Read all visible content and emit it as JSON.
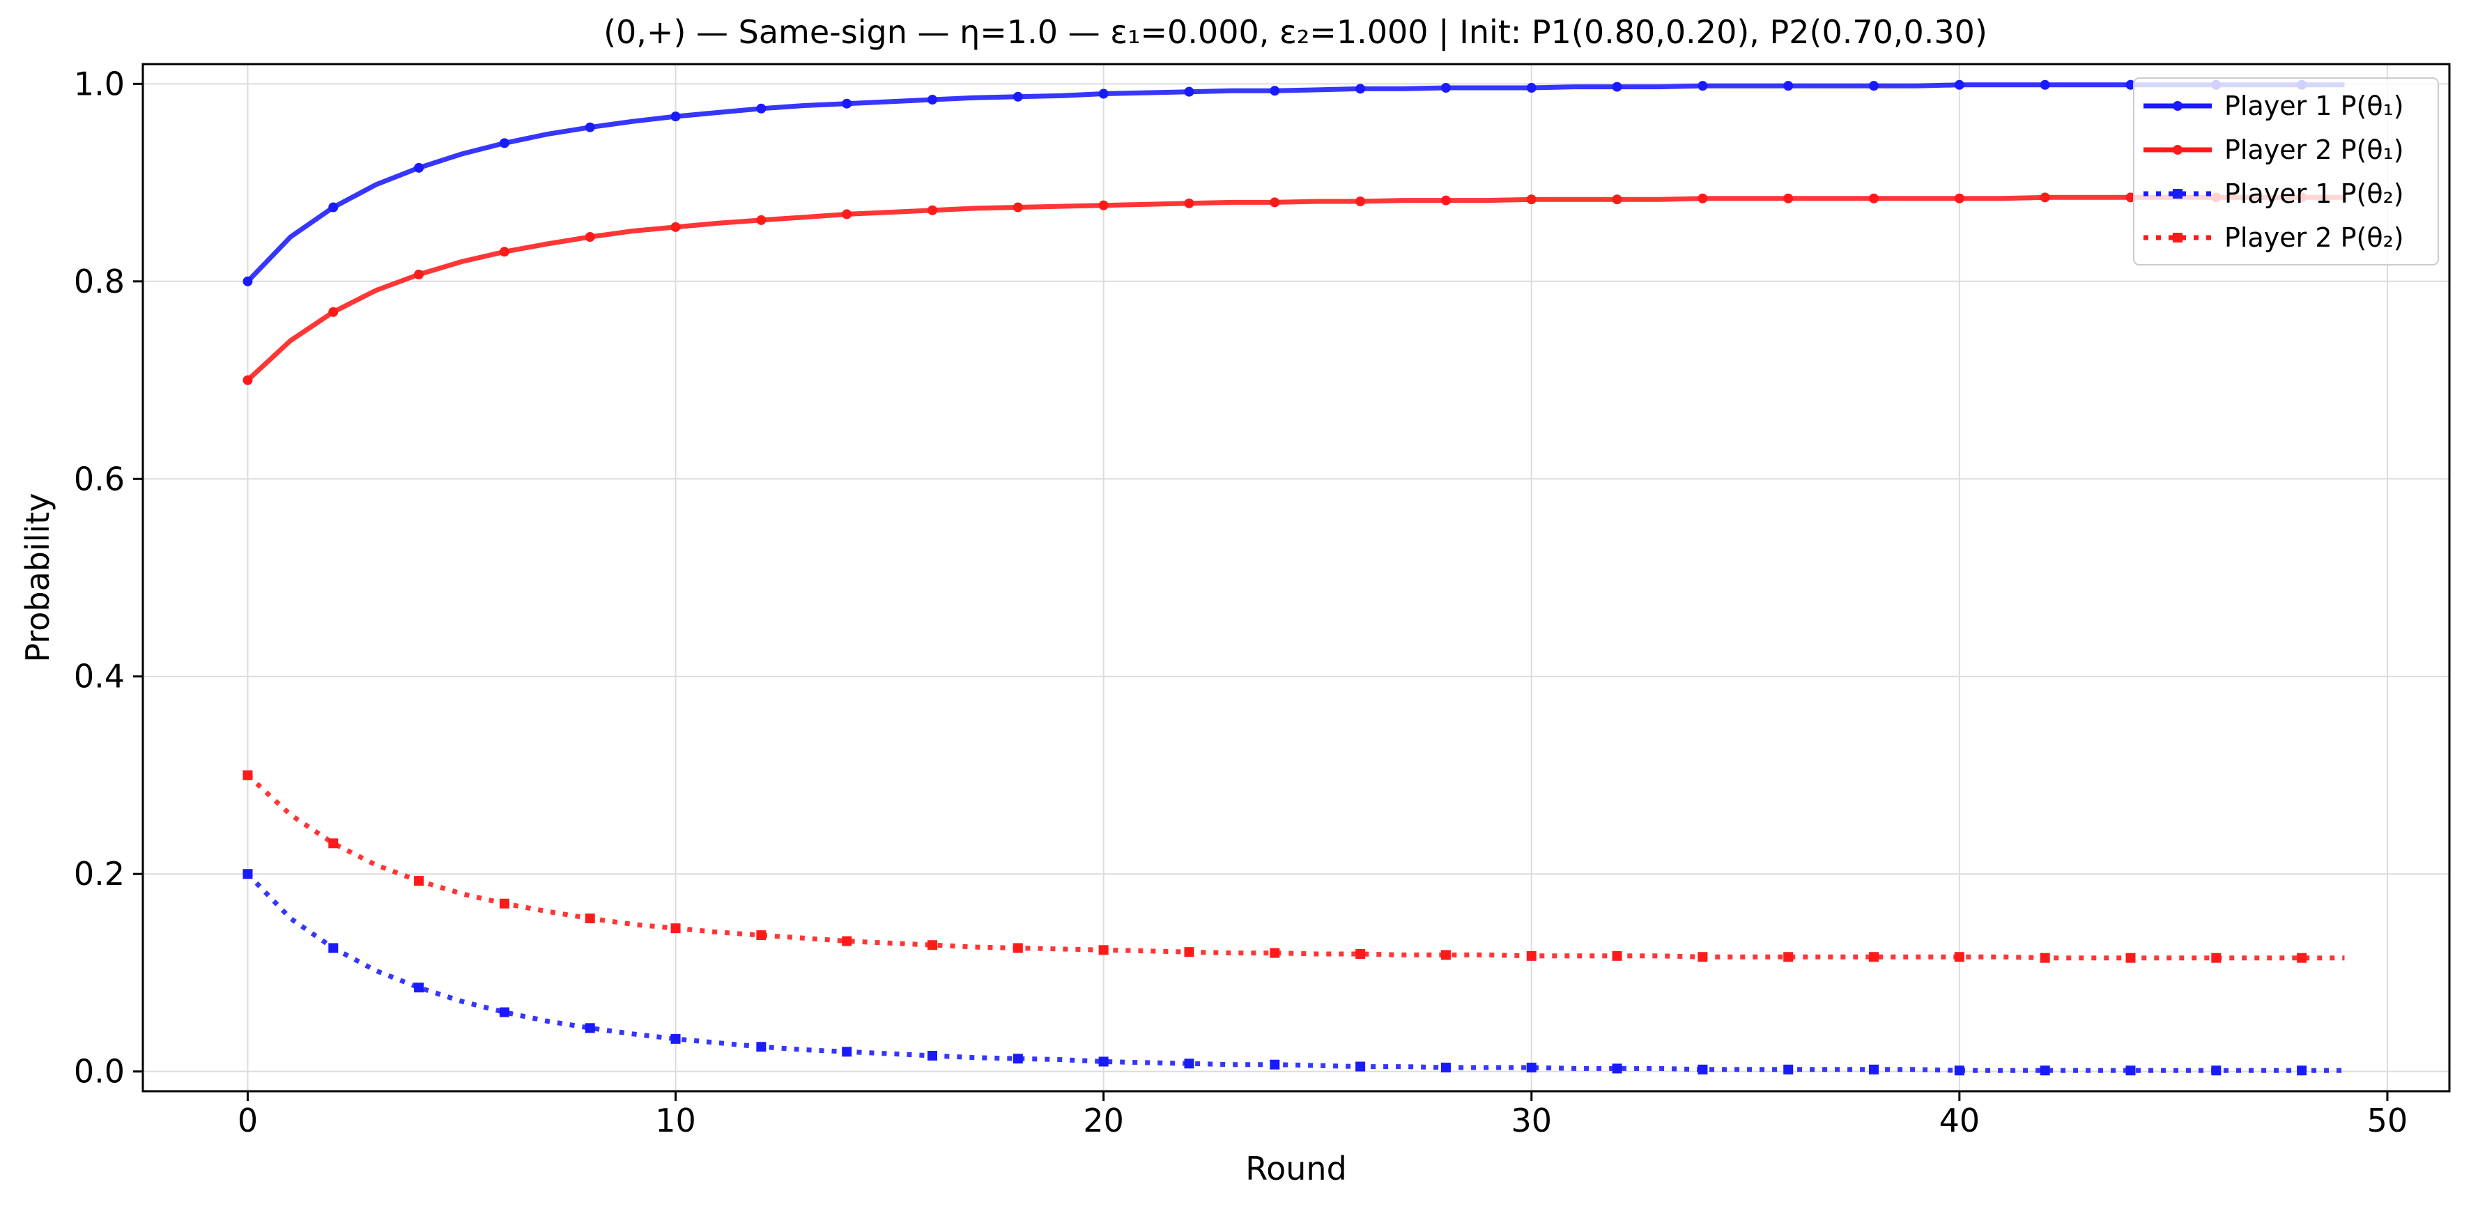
{
  "chart_data": {
    "type": "line",
    "title": "(0,+) — Same-sign — η=1.0 — ε₁=0.000, ε₂=1.000 | Init: P1(0.80,0.20), P2(0.70,0.30)",
    "xlabel": "Round",
    "ylabel": "Probability",
    "xlim": [
      -2.45,
      51.45
    ],
    "ylim": [
      -0.02,
      1.02
    ],
    "xticks": [
      0,
      10,
      20,
      30,
      40,
      50
    ],
    "xtick_labels": [
      "0",
      "10",
      "20",
      "30",
      "40",
      "50"
    ],
    "yticks": [
      0.0,
      0.2,
      0.4,
      0.6,
      0.8,
      1.0
    ],
    "ytick_labels": [
      "0.0",
      "0.2",
      "0.4",
      "0.6",
      "0.8",
      "1.0"
    ],
    "grid": true,
    "legend_position": "top-right",
    "x": [
      0,
      1,
      2,
      3,
      4,
      5,
      6,
      7,
      8,
      9,
      10,
      11,
      12,
      13,
      14,
      15,
      16,
      17,
      18,
      19,
      20,
      21,
      22,
      23,
      24,
      25,
      26,
      27,
      28,
      29,
      30,
      31,
      32,
      33,
      34,
      35,
      36,
      37,
      38,
      39,
      40,
      41,
      42,
      43,
      44,
      45,
      46,
      47,
      48,
      49
    ],
    "marker_every": 2,
    "series": [
      {
        "name": "Player 1 P(θ₁)",
        "color": "#1a1aff",
        "style": "solid",
        "marker": "circle",
        "values": [
          0.8,
          0.845,
          0.875,
          0.898,
          0.915,
          0.929,
          0.94,
          0.949,
          0.956,
          0.962,
          0.967,
          0.971,
          0.975,
          0.978,
          0.98,
          0.982,
          0.984,
          0.986,
          0.987,
          0.988,
          0.99,
          0.991,
          0.992,
          0.993,
          0.993,
          0.994,
          0.995,
          0.995,
          0.996,
          0.996,
          0.996,
          0.997,
          0.997,
          0.997,
          0.998,
          0.998,
          0.998,
          0.998,
          0.998,
          0.998,
          0.999,
          0.999,
          0.999,
          0.999,
          0.999,
          0.999,
          0.999,
          0.999,
          0.999,
          0.999
        ]
      },
      {
        "name": "Player 2 P(θ₁)",
        "color": "#ff1a1a",
        "style": "solid",
        "marker": "circle",
        "values": [
          0.7,
          0.74,
          0.769,
          0.791,
          0.807,
          0.82,
          0.83,
          0.838,
          0.845,
          0.851,
          0.855,
          0.859,
          0.862,
          0.865,
          0.868,
          0.87,
          0.872,
          0.874,
          0.875,
          0.876,
          0.877,
          0.878,
          0.879,
          0.88,
          0.88,
          0.881,
          0.881,
          0.882,
          0.882,
          0.882,
          0.883,
          0.883,
          0.883,
          0.883,
          0.884,
          0.884,
          0.884,
          0.884,
          0.884,
          0.884,
          0.884,
          0.884,
          0.885,
          0.885,
          0.885,
          0.885,
          0.885,
          0.885,
          0.885,
          0.885
        ]
      },
      {
        "name": "Player 1 P(θ₂)",
        "color": "#1a1aff",
        "style": "dotted",
        "marker": "square",
        "values": [
          0.2,
          0.155,
          0.125,
          0.102,
          0.085,
          0.071,
          0.06,
          0.051,
          0.044,
          0.038,
          0.033,
          0.029,
          0.025,
          0.022,
          0.02,
          0.018,
          0.016,
          0.014,
          0.013,
          0.012,
          0.01,
          0.009,
          0.008,
          0.007,
          0.007,
          0.006,
          0.005,
          0.005,
          0.004,
          0.004,
          0.004,
          0.003,
          0.003,
          0.003,
          0.002,
          0.002,
          0.002,
          0.002,
          0.002,
          0.002,
          0.001,
          0.001,
          0.001,
          0.001,
          0.001,
          0.001,
          0.001,
          0.001,
          0.001,
          0.001
        ]
      },
      {
        "name": "Player 2 P(θ₂)",
        "color": "#ff1a1a",
        "style": "dotted",
        "marker": "square",
        "values": [
          0.3,
          0.26,
          0.231,
          0.209,
          0.193,
          0.18,
          0.17,
          0.162,
          0.155,
          0.149,
          0.145,
          0.141,
          0.138,
          0.135,
          0.132,
          0.13,
          0.128,
          0.126,
          0.125,
          0.124,
          0.123,
          0.122,
          0.121,
          0.12,
          0.12,
          0.119,
          0.119,
          0.118,
          0.118,
          0.118,
          0.117,
          0.117,
          0.117,
          0.117,
          0.116,
          0.116,
          0.116,
          0.116,
          0.116,
          0.116,
          0.116,
          0.116,
          0.115,
          0.115,
          0.115,
          0.115,
          0.115,
          0.115,
          0.115,
          0.115
        ]
      }
    ]
  }
}
